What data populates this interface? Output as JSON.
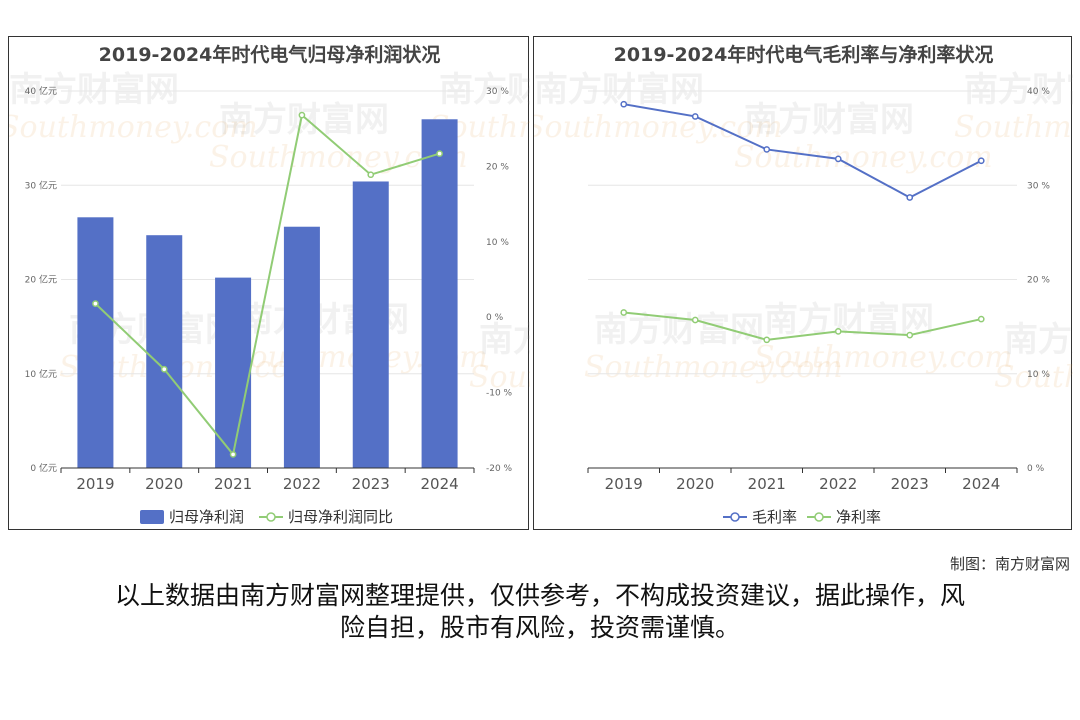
{
  "charts": {
    "left": {
      "title": "2019-2024年时代电气归母净利润状况",
      "legend": [
        "归母净利润",
        "归母净利润同比"
      ],
      "y_left_ticks": [
        "0 亿元",
        "10 亿元",
        "20 亿元",
        "30 亿元",
        "40 亿元"
      ],
      "y_right_ticks": [
        "-20 %",
        "-10 %",
        "0 %",
        "10 %",
        "20 %",
        "30 %"
      ]
    },
    "right": {
      "title": "2019-2024年时代电气毛利率与净利率状况",
      "legend": [
        "毛利率",
        "净利率"
      ],
      "y_right_ticks": [
        "0 %",
        "10 %",
        "20 %",
        "30 %",
        "40 %"
      ]
    }
  },
  "chart_data": [
    {
      "type": "bar",
      "title": "2019-2024年时代电气归母净利润状况",
      "categories": [
        "2019",
        "2020",
        "2021",
        "2022",
        "2023",
        "2024"
      ],
      "series": [
        {
          "name": "归母净利润",
          "type": "bar",
          "axis": "left",
          "unit": "亿元",
          "color": "#5470c6",
          "values": [
            26.6,
            24.7,
            20.2,
            25.6,
            30.4,
            37.0
          ]
        },
        {
          "name": "归母净利润同比",
          "type": "line",
          "axis": "right",
          "unit": "%",
          "color": "#91cc75",
          "values": [
            1.8,
            -6.9,
            -18.2,
            26.8,
            18.9,
            21.7
          ]
        }
      ],
      "ylim_left": [
        0,
        40
      ],
      "ylim_right": [
        -20,
        30
      ],
      "grid": true,
      "legend_position": "bottom"
    },
    {
      "type": "line",
      "title": "2019-2024年时代电气毛利率与净利率状况",
      "categories": [
        "2019",
        "2020",
        "2021",
        "2022",
        "2023",
        "2024"
      ],
      "series": [
        {
          "name": "毛利率",
          "unit": "%",
          "color": "#5470c6",
          "values": [
            38.6,
            37.3,
            33.8,
            32.8,
            28.7,
            32.6
          ]
        },
        {
          "name": "净利率",
          "unit": "%",
          "color": "#91cc75",
          "values": [
            16.5,
            15.7,
            13.6,
            14.5,
            14.1,
            15.8
          ]
        }
      ],
      "ylim": [
        0,
        40
      ],
      "grid": true,
      "legend_position": "bottom"
    }
  ],
  "watermark": "南方财富网 Southmoney.com",
  "credit": "制图：南方财富网",
  "disclaimer": {
    "line1": "以上数据由南方财富网整理提供，仅供参考，不构成投资建议，据此操作，风",
    "line2": "险自担，股市有风险，投资需谨慎。"
  }
}
